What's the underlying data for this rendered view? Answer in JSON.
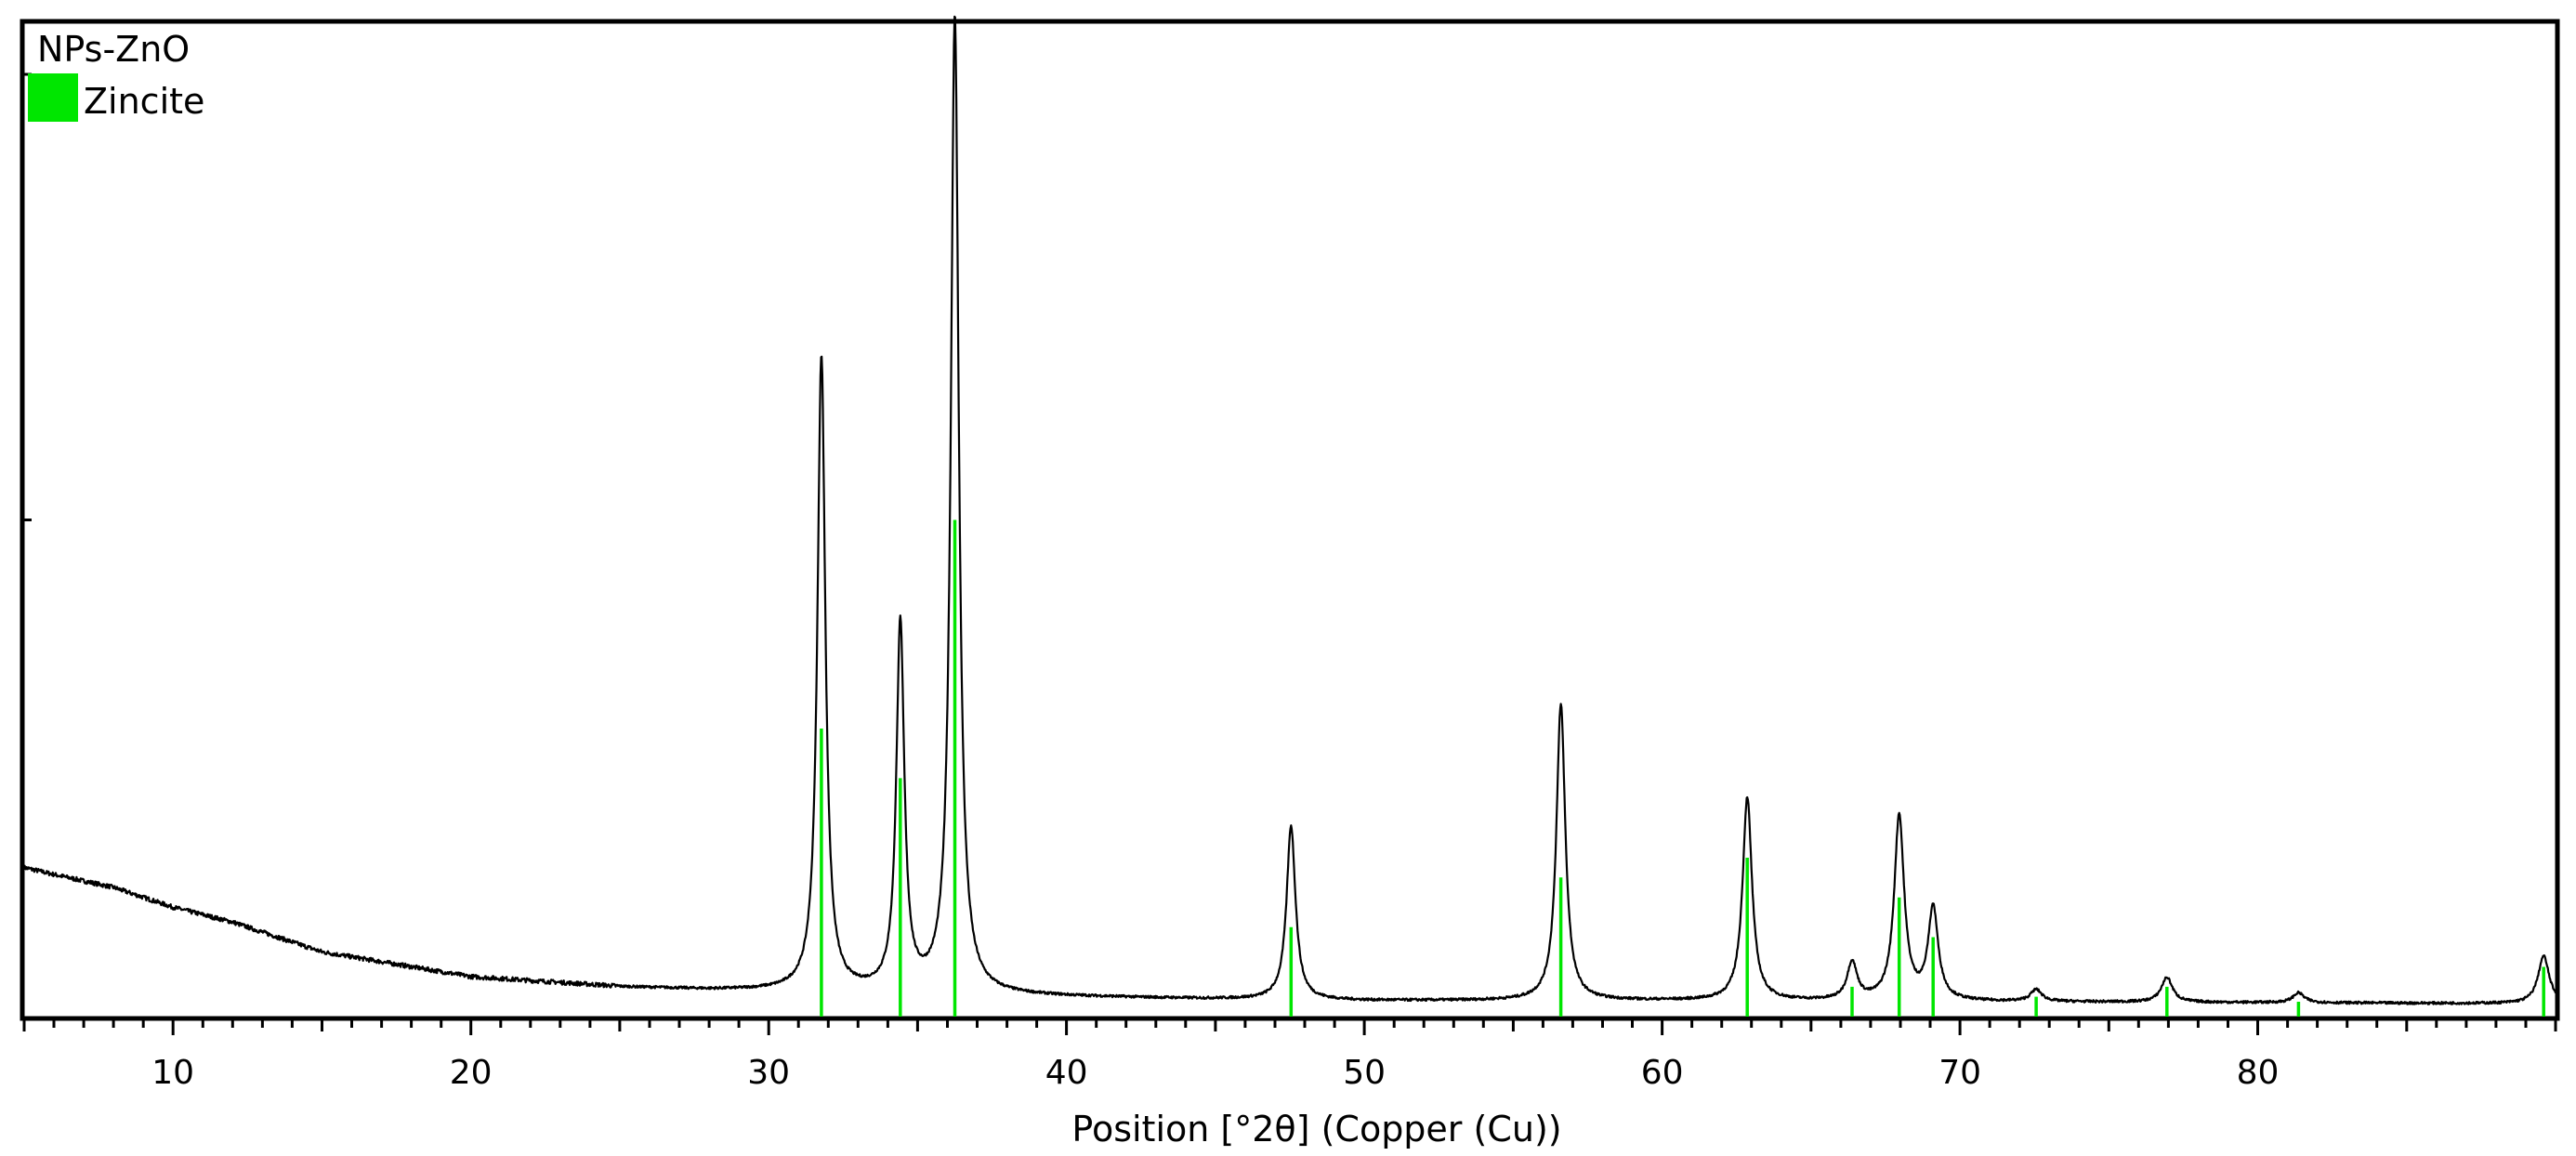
{
  "chart_data": {
    "type": "line",
    "title": "",
    "xlabel": "Position [°2θ] (Copper (Cu))",
    "ylabel": "",
    "xlim": [
      5,
      90
    ],
    "ylim": [
      0,
      100
    ],
    "grid": false,
    "legend_position": "top-left",
    "x_ticks": [
      10,
      20,
      30,
      40,
      50,
      60,
      70,
      80
    ],
    "x_tick_labels": [
      "10",
      "20",
      "30",
      "40",
      "50",
      "60",
      "70",
      "80"
    ],
    "x_minor_tick_step": 1,
    "y_ticks": [
      50,
      100
    ],
    "legend": {
      "sample_name": "NPs-ZnO",
      "phase_name": "Zincite",
      "phase_color": "#00e600"
    },
    "series": [
      {
        "name": "NPs-ZnO",
        "color": "#000000",
        "baseline": [
          [
            5,
            15
          ],
          [
            6,
            14.3
          ],
          [
            8,
            13
          ],
          [
            10,
            11
          ],
          [
            12,
            9.5
          ],
          [
            15,
            6.5
          ],
          [
            18,
            5
          ],
          [
            20,
            4
          ],
          [
            25,
            3
          ],
          [
            28,
            2.7
          ],
          [
            30,
            2.6
          ],
          [
            40,
            2
          ],
          [
            44,
            1.8
          ],
          [
            50,
            1.6
          ],
          [
            60,
            1.6
          ],
          [
            70,
            1.5
          ],
          [
            80,
            1.4
          ],
          [
            90,
            1.3
          ]
        ],
        "peaks": [
          {
            "x": 31.77,
            "height": 64,
            "fwhm": 0.32
          },
          {
            "x": 34.42,
            "height": 37,
            "fwhm": 0.32
          },
          {
            "x": 36.25,
            "height": 98.5,
            "fwhm": 0.32
          },
          {
            "x": 47.54,
            "height": 17.5,
            "fwhm": 0.36
          },
          {
            "x": 56.6,
            "height": 29.8,
            "fwhm": 0.36
          },
          {
            "x": 62.86,
            "height": 20.5,
            "fwhm": 0.38
          },
          {
            "x": 66.38,
            "height": 3.8,
            "fwhm": 0.4
          },
          {
            "x": 67.96,
            "height": 18.6,
            "fwhm": 0.4
          },
          {
            "x": 69.1,
            "height": 9.3,
            "fwhm": 0.4
          },
          {
            "x": 72.56,
            "height": 1.2,
            "fwhm": 0.45
          },
          {
            "x": 76.95,
            "height": 2.5,
            "fwhm": 0.45
          },
          {
            "x": 81.37,
            "height": 1.0,
            "fwhm": 0.45
          },
          {
            "x": 89.6,
            "height": 4.8,
            "fwhm": 0.45
          }
        ]
      }
    ],
    "reference_lines": [
      {
        "name": "Zincite",
        "color": "#00e600",
        "x": 31.77,
        "y": 29
      },
      {
        "name": "Zincite",
        "color": "#00e600",
        "x": 34.42,
        "y": 24
      },
      {
        "name": "Zincite",
        "color": "#00e600",
        "x": 36.25,
        "y": 50
      },
      {
        "name": "Zincite",
        "color": "#00e600",
        "x": 47.54,
        "y": 9
      },
      {
        "name": "Zincite",
        "color": "#00e600",
        "x": 56.6,
        "y": 14
      },
      {
        "name": "Zincite",
        "color": "#00e600",
        "x": 62.86,
        "y": 16
      },
      {
        "name": "Zincite",
        "color": "#00e600",
        "x": 66.38,
        "y": 3
      },
      {
        "name": "Zincite",
        "color": "#00e600",
        "x": 67.96,
        "y": 12
      },
      {
        "name": "Zincite",
        "color": "#00e600",
        "x": 69.1,
        "y": 8
      },
      {
        "name": "Zincite",
        "color": "#00e600",
        "x": 72.56,
        "y": 2
      },
      {
        "name": "Zincite",
        "color": "#00e600",
        "x": 76.95,
        "y": 3
      },
      {
        "name": "Zincite",
        "color": "#00e600",
        "x": 81.37,
        "y": 1.5
      },
      {
        "name": "Zincite",
        "color": "#00e600",
        "x": 89.6,
        "y": 5
      }
    ]
  }
}
